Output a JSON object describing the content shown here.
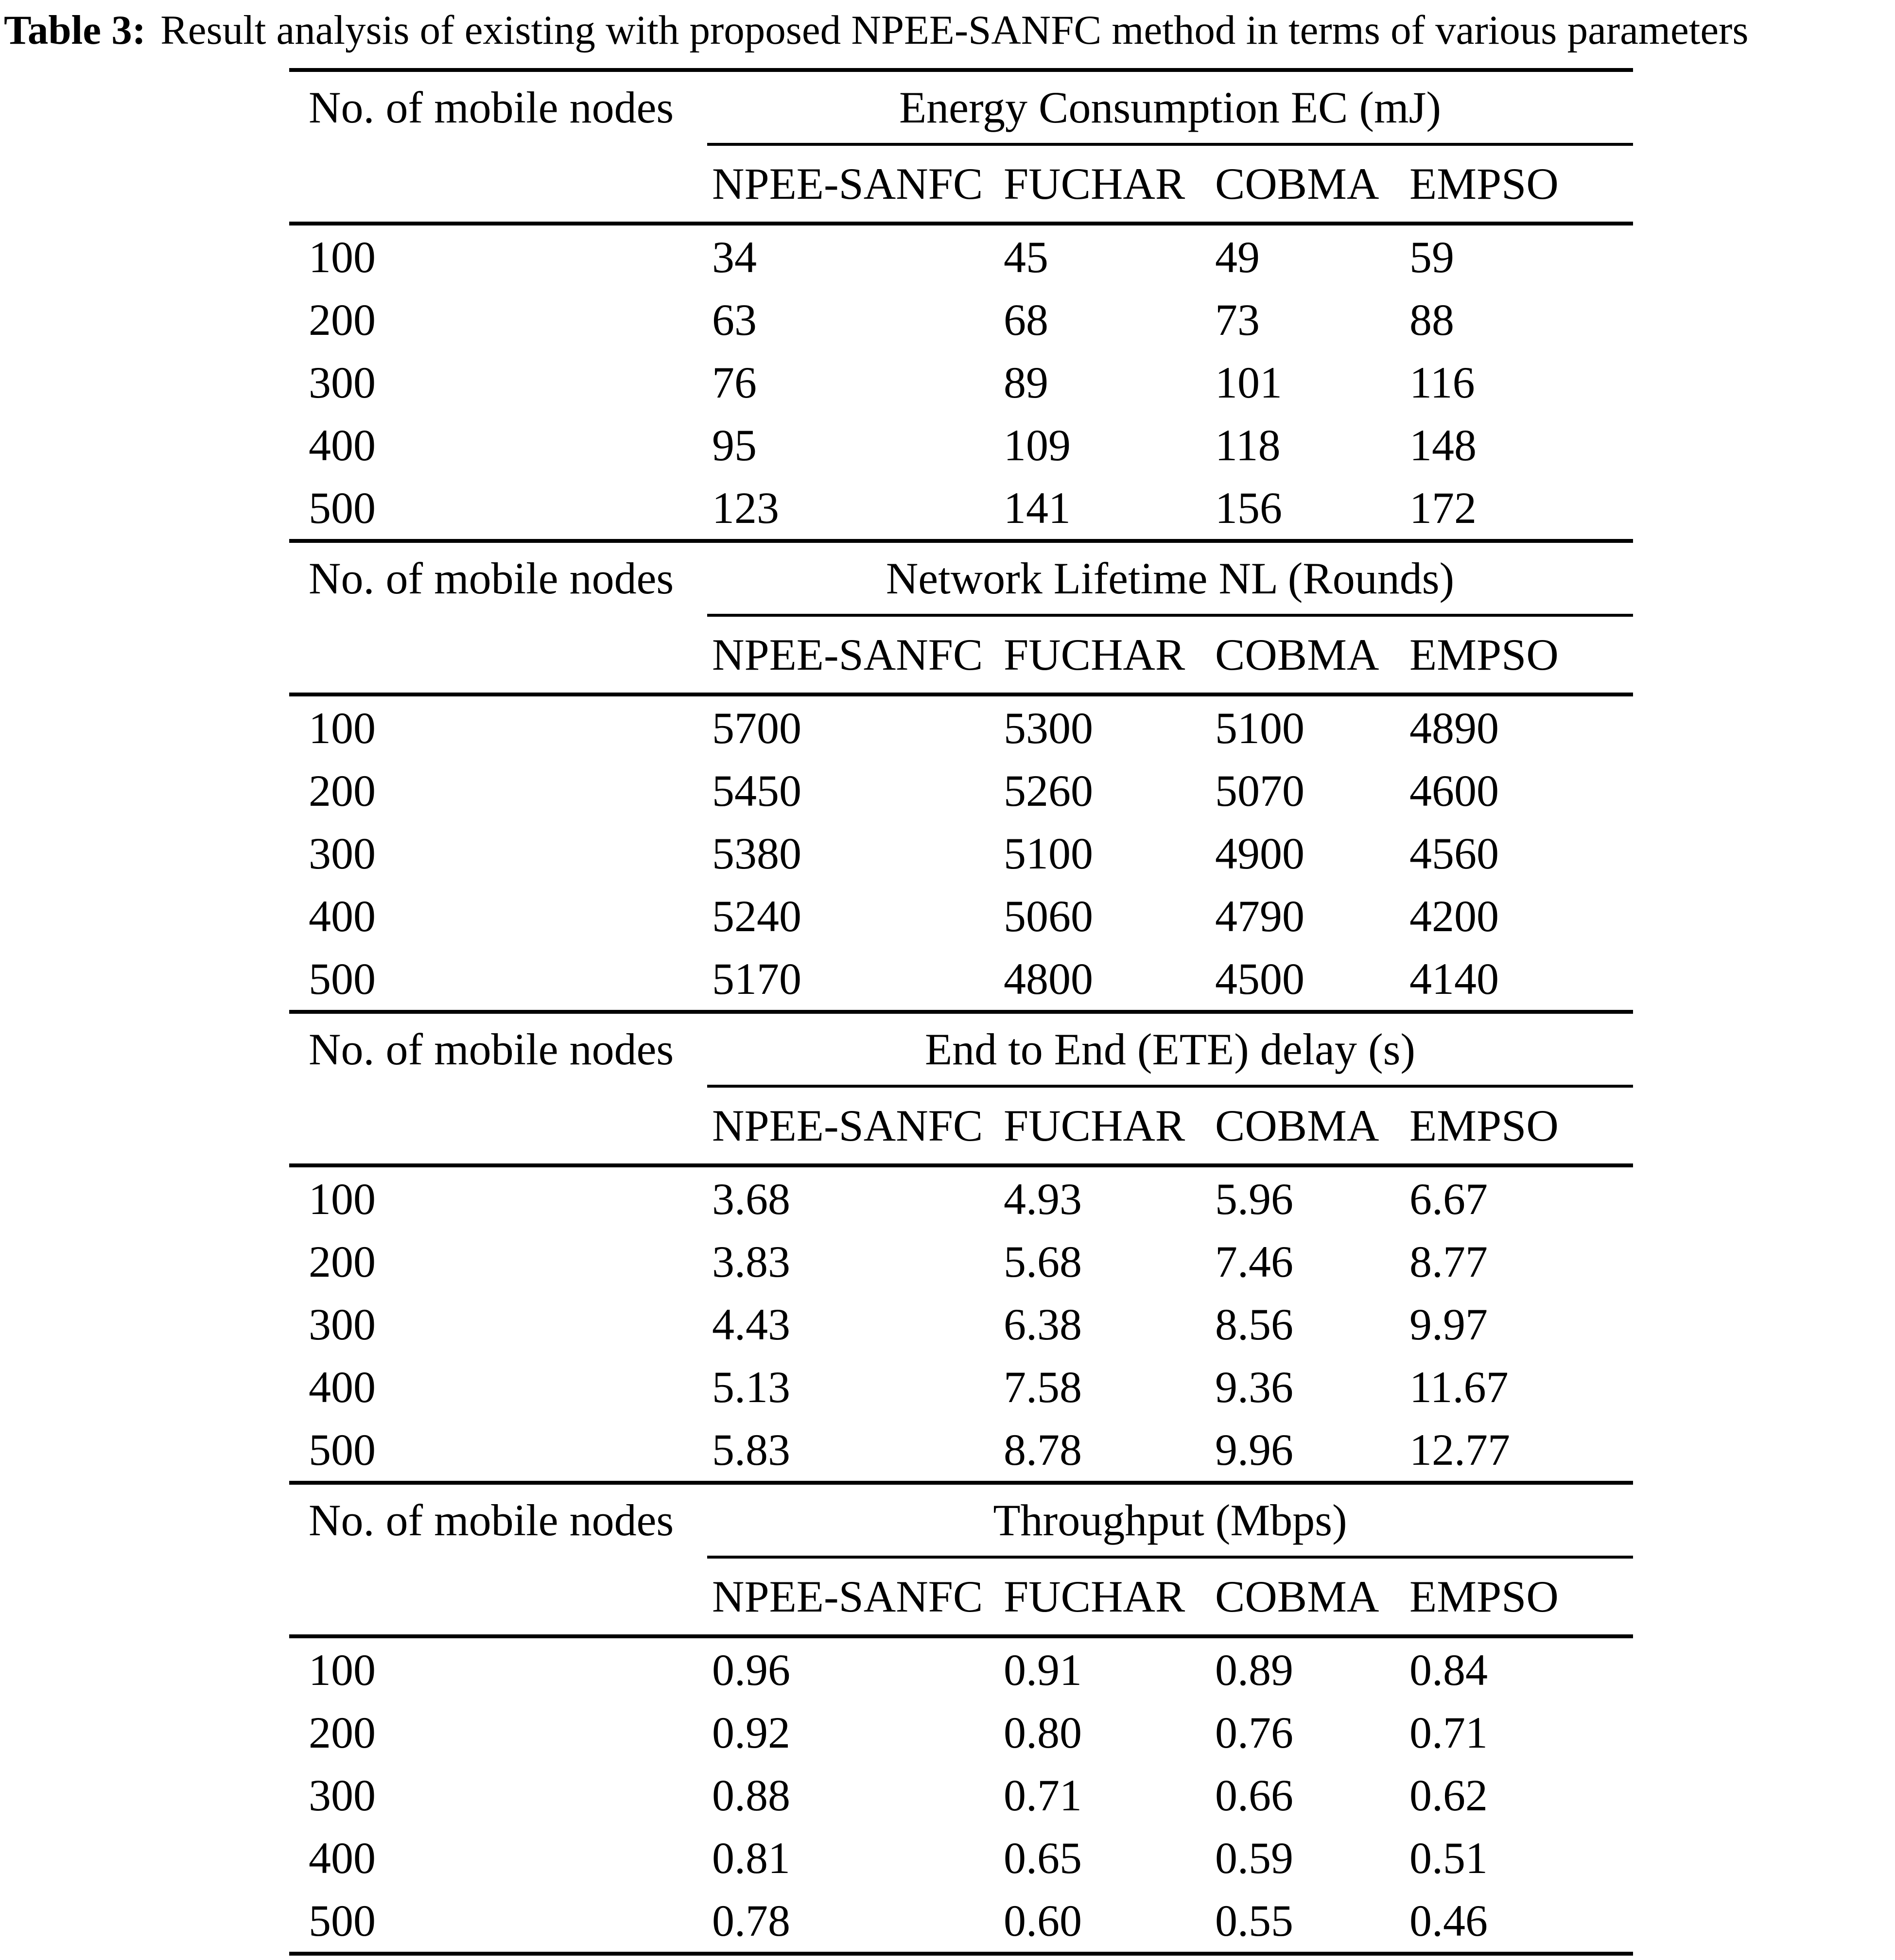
{
  "caption": {
    "label": "Table 3:",
    "text": "Result analysis of existing with proposed NPEE-SANFC method in terms of various parameters"
  },
  "row_header": "No. of mobile nodes",
  "methods": [
    "NPEE-SANFC",
    "FUCHAR",
    "COBMA",
    "EMPSO"
  ],
  "sections": [
    {
      "metric": "Energy Consumption EC (mJ)",
      "rows": [
        {
          "nodes": "100",
          "values": [
            "34",
            "45",
            "49",
            "59"
          ]
        },
        {
          "nodes": "200",
          "values": [
            "63",
            "68",
            "73",
            "88"
          ]
        },
        {
          "nodes": "300",
          "values": [
            "76",
            "89",
            "101",
            "116"
          ]
        },
        {
          "nodes": "400",
          "values": [
            "95",
            "109",
            "118",
            "148"
          ]
        },
        {
          "nodes": "500",
          "values": [
            "123",
            "141",
            "156",
            "172"
          ]
        }
      ]
    },
    {
      "metric": "Network Lifetime NL (Rounds)",
      "rows": [
        {
          "nodes": "100",
          "values": [
            "5700",
            "5300",
            "5100",
            "4890"
          ]
        },
        {
          "nodes": "200",
          "values": [
            "5450",
            "5260",
            "5070",
            "4600"
          ]
        },
        {
          "nodes": "300",
          "values": [
            "5380",
            "5100",
            "4900",
            "4560"
          ]
        },
        {
          "nodes": "400",
          "values": [
            "5240",
            "5060",
            "4790",
            "4200"
          ]
        },
        {
          "nodes": "500",
          "values": [
            "5170",
            "4800",
            "4500",
            "4140"
          ]
        }
      ]
    },
    {
      "metric": "End to End (ETE) delay (s)",
      "rows": [
        {
          "nodes": "100",
          "values": [
            "3.68",
            "4.93",
            "5.96",
            "6.67"
          ]
        },
        {
          "nodes": "200",
          "values": [
            "3.83",
            "5.68",
            "7.46",
            "8.77"
          ]
        },
        {
          "nodes": "300",
          "values": [
            "4.43",
            "6.38",
            "8.56",
            "9.97"
          ]
        },
        {
          "nodes": "400",
          "values": [
            "5.13",
            "7.58",
            "9.36",
            "11.67"
          ]
        },
        {
          "nodes": "500",
          "values": [
            "5.83",
            "8.78",
            "9.96",
            "12.77"
          ]
        }
      ]
    },
    {
      "metric": "Throughput (Mbps)",
      "rows": [
        {
          "nodes": "100",
          "values": [
            "0.96",
            "0.91",
            "0.89",
            "0.84"
          ]
        },
        {
          "nodes": "200",
          "values": [
            "0.92",
            "0.80",
            "0.76",
            "0.71"
          ]
        },
        {
          "nodes": "300",
          "values": [
            "0.88",
            "0.71",
            "0.66",
            "0.62"
          ]
        },
        {
          "nodes": "400",
          "values": [
            "0.81",
            "0.65",
            "0.59",
            "0.51"
          ]
        },
        {
          "nodes": "500",
          "values": [
            "0.78",
            "0.60",
            "0.55",
            "0.46"
          ]
        }
      ]
    }
  ],
  "colors": {
    "text": "#000000",
    "background": "#ffffff",
    "rule": "#000000"
  }
}
